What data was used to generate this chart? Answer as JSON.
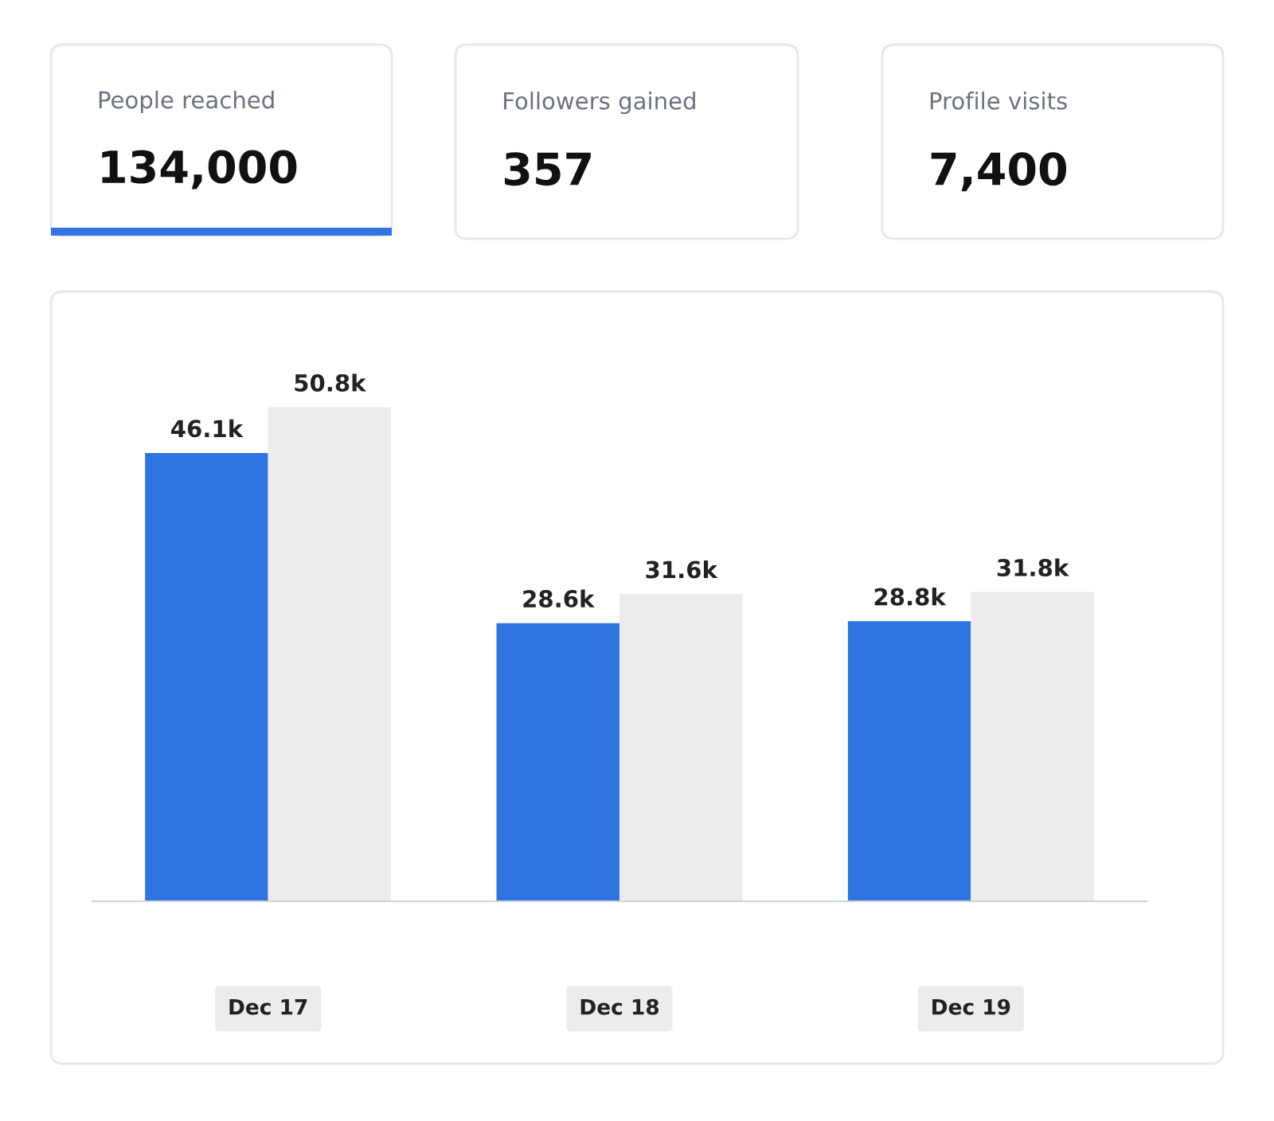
{
  "chart_data": [
    {
      "type": "other",
      "title": "People reached",
      "annotations": [
        "134,000"
      ]
    },
    {
      "type": "other",
      "title": "Followers gained",
      "annotations": [
        "357"
      ]
    },
    {
      "type": "other",
      "title": "Profile visits",
      "annotations": [
        "7,400"
      ]
    },
    {
      "type": "bar",
      "categories": [
        "Dec 17",
        "Dec 18",
        "Dec 19"
      ],
      "tick_labels": "x",
      "series": [
        {
          "color": "#2f74e0",
          "values": [
            46.1,
            28.6,
            28.8
          ],
          "value_labels": [
            "46.1k",
            "28.6k",
            "28.8k"
          ]
        },
        {
          "color": "#ececec",
          "values": [
            50.8,
            31.6,
            31.8
          ],
          "value_labels": [
            "50.8k",
            "31.6k",
            "31.8k"
          ]
        }
      ]
    }
  ]
}
